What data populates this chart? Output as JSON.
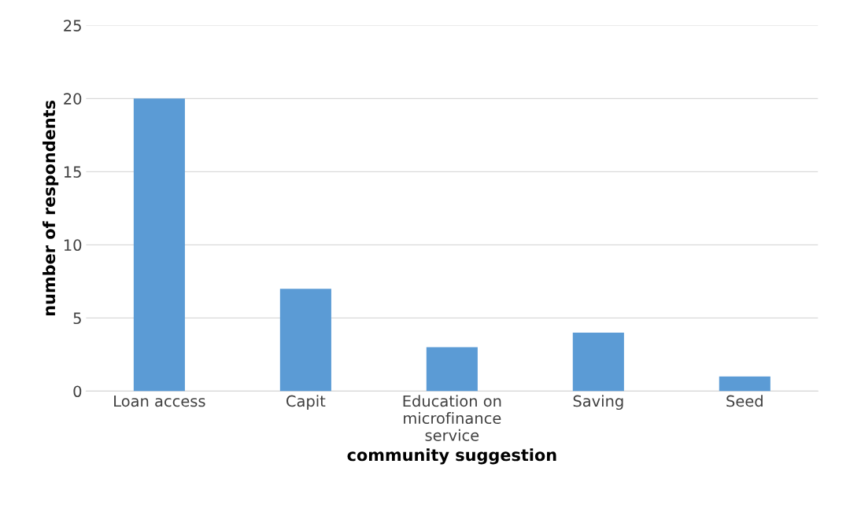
{
  "chart_data": {
    "type": "bar",
    "xlabel": "community suggestion",
    "ylabel": "number of respondents",
    "categories": [
      "Loan access",
      "Capit",
      "Education on\nmicrofinance\nservice",
      "Saving",
      "Seed"
    ],
    "values": [
      20,
      7,
      3,
      4,
      1
    ],
    "color": "#5b9bd5",
    "ylim": [
      0,
      25
    ],
    "yticks": [
      0,
      5,
      10,
      15,
      20,
      25
    ],
    "grid": "y",
    "legend": false
  }
}
